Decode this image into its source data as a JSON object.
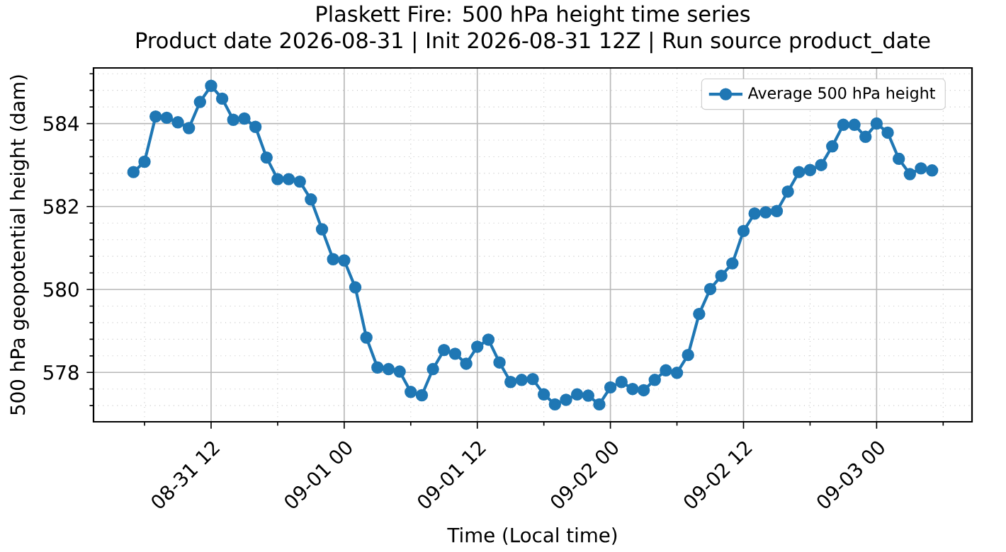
{
  "chart_data": {
    "type": "line",
    "title": "Plaskett Fire: 500 hPa height time series",
    "subtitle": "Product date 2026-08-31 | Init 2026-08-31 12Z | Run source product_date",
    "xlabel": "Time (Local time)",
    "ylabel": "500 hPa geopotential height (dam)",
    "x": [
      "2026-08-31T05:00",
      "2026-08-31T06:00",
      "2026-08-31T07:00",
      "2026-08-31T08:00",
      "2026-08-31T09:00",
      "2026-08-31T10:00",
      "2026-08-31T11:00",
      "2026-08-31T12:00",
      "2026-08-31T13:00",
      "2026-08-31T14:00",
      "2026-08-31T15:00",
      "2026-08-31T16:00",
      "2026-08-31T17:00",
      "2026-08-31T18:00",
      "2026-08-31T19:00",
      "2026-08-31T20:00",
      "2026-08-31T21:00",
      "2026-08-31T22:00",
      "2026-08-31T23:00",
      "2026-09-01T00:00",
      "2026-09-01T01:00",
      "2026-09-01T02:00",
      "2026-09-01T03:00",
      "2026-09-01T04:00",
      "2026-09-01T05:00",
      "2026-09-01T06:00",
      "2026-09-01T07:00",
      "2026-09-01T08:00",
      "2026-09-01T09:00",
      "2026-09-01T10:00",
      "2026-09-01T11:00",
      "2026-09-01T12:00",
      "2026-09-01T13:00",
      "2026-09-01T14:00",
      "2026-09-01T15:00",
      "2026-09-01T16:00",
      "2026-09-01T17:00",
      "2026-09-01T18:00",
      "2026-09-01T19:00",
      "2026-09-01T20:00",
      "2026-09-01T21:00",
      "2026-09-01T22:00",
      "2026-09-01T23:00",
      "2026-09-02T00:00",
      "2026-09-02T01:00",
      "2026-09-02T02:00",
      "2026-09-02T03:00",
      "2026-09-02T04:00",
      "2026-09-02T05:00",
      "2026-09-02T06:00",
      "2026-09-02T07:00",
      "2026-09-02T08:00",
      "2026-09-02T09:00",
      "2026-09-02T10:00",
      "2026-09-02T11:00",
      "2026-09-02T12:00",
      "2026-09-02T13:00",
      "2026-09-02T14:00",
      "2026-09-02T15:00",
      "2026-09-02T16:00",
      "2026-09-02T17:00",
      "2026-09-02T18:00",
      "2026-09-02T19:00",
      "2026-09-02T20:00",
      "2026-09-02T21:00",
      "2026-09-02T22:00",
      "2026-09-02T23:00",
      "2026-09-03T00:00",
      "2026-09-03T01:00",
      "2026-09-03T02:00",
      "2026-09-03T03:00",
      "2026-09-03T04:00",
      "2026-09-03T05:00"
    ],
    "series": [
      {
        "name": "Average 500 hPa height",
        "color": "#1f77b4",
        "values": [
          582.83,
          583.08,
          584.17,
          584.14,
          584.03,
          583.89,
          584.52,
          584.91,
          584.6,
          584.09,
          584.12,
          583.92,
          583.18,
          582.66,
          582.66,
          582.6,
          582.17,
          581.45,
          580.73,
          580.7,
          580.05,
          578.84,
          578.12,
          578.08,
          578.02,
          577.53,
          577.45,
          578.08,
          578.54,
          578.45,
          578.21,
          578.62,
          578.79,
          578.24,
          577.77,
          577.82,
          577.84,
          577.47,
          577.23,
          577.34,
          577.47,
          577.44,
          577.23,
          577.64,
          577.77,
          577.6,
          577.57,
          577.82,
          578.05,
          577.99,
          578.42,
          579.41,
          580.01,
          580.33,
          580.63,
          581.41,
          581.83,
          581.86,
          581.89,
          582.36,
          582.83,
          582.88,
          583.0,
          583.45,
          583.97,
          583.97,
          583.68,
          584.0,
          583.78,
          583.15,
          582.78,
          582.92,
          582.87
        ]
      }
    ],
    "xlim": [
      "2026-08-31T01:24",
      "2026-09-03T08:36"
    ],
    "xticks": [
      {
        "value": "2026-08-31T06:00",
        "label": null
      },
      {
        "value": "2026-08-31T12:00",
        "label": "08-31 12"
      },
      {
        "value": "2026-08-31T18:00",
        "label": null
      },
      {
        "value": "2026-09-01T00:00",
        "label": "09-01 00"
      },
      {
        "value": "2026-09-01T06:00",
        "label": null
      },
      {
        "value": "2026-09-01T12:00",
        "label": "09-01 12"
      },
      {
        "value": "2026-09-01T18:00",
        "label": null
      },
      {
        "value": "2026-09-02T00:00",
        "label": "09-02 00"
      },
      {
        "value": "2026-09-02T06:00",
        "label": null
      },
      {
        "value": "2026-09-02T12:00",
        "label": "09-02 12"
      },
      {
        "value": "2026-09-02T18:00",
        "label": null
      },
      {
        "value": "2026-09-03T00:00",
        "label": "09-03 00"
      },
      {
        "value": "2026-09-03T06:00",
        "label": null
      }
    ],
    "ylim": [
      576.81,
      585.34
    ],
    "yticks": [
      {
        "value": 577.2,
        "label": null
      },
      {
        "value": 577.6,
        "label": null
      },
      578,
      {
        "value": 578.4,
        "label": null
      },
      {
        "value": 578.8,
        "label": null
      },
      {
        "value": 579.2,
        "label": null
      },
      {
        "value": 579.6,
        "label": null
      },
      580,
      {
        "value": 580.4,
        "label": null
      },
      {
        "value": 580.8,
        "label": null
      },
      {
        "value": 581.2,
        "label": null
      },
      {
        "value": 581.6,
        "label": null
      },
      582,
      {
        "value": 582.4,
        "label": null
      },
      {
        "value": 582.8,
        "label": null
      },
      {
        "value": 583.2,
        "label": null
      },
      {
        "value": 583.6,
        "label": null
      },
      584,
      {
        "value": 584.4,
        "label": null
      },
      {
        "value": 584.8,
        "label": null
      },
      {
        "value": 585.2,
        "label": null
      }
    ],
    "grid": true,
    "legend": "top right",
    "marker": "circle",
    "line_style": "solid"
  }
}
